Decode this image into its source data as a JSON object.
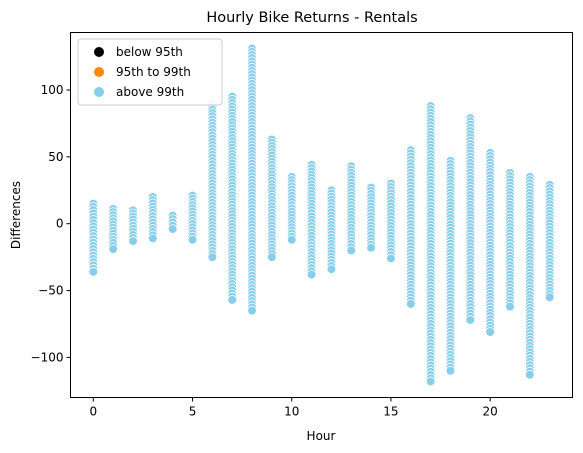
{
  "chart_data": {
    "type": "scatter",
    "title": "Hourly Bike Returns - Rentals",
    "xlabel": "Hour",
    "ylabel": "Differences",
    "xlim": [
      -1.15,
      24.15
    ],
    "ylim": [
      -130,
      143
    ],
    "xticks": [
      0,
      5,
      10,
      15,
      20
    ],
    "yticks": [
      -100,
      -50,
      0,
      50,
      100
    ],
    "grid": false,
    "legend_position": "top-left",
    "series": [
      {
        "name": "below 95th",
        "color": "#000000",
        "ranges": [
          {
            "x": 0,
            "y": [
              -4,
              1
            ]
          },
          {
            "x": 1,
            "y": [
              -2,
              4
            ]
          },
          {
            "x": 2,
            "y": [
              -1,
              3
            ]
          },
          {
            "x": 3,
            "y": [
              -1,
              2
            ]
          },
          {
            "x": 4,
            "y": [
              -1,
              1
            ]
          },
          {
            "x": 5,
            "y": [
              -2,
              3
            ]
          },
          {
            "x": 6,
            "y": [
              -6,
              6
            ]
          },
          {
            "x": 7,
            "y": [
              -14,
              13
            ]
          },
          {
            "x": 8,
            "y": [
              -14,
              14
            ]
          },
          {
            "x": 9,
            "y": [
              -9,
              8
            ]
          },
          {
            "x": 10,
            "y": [
              -5,
              4
            ]
          },
          {
            "x": 11,
            "y": [
              -7,
              6
            ]
          },
          {
            "x": 12,
            "y": [
              -5,
              5
            ]
          },
          {
            "x": 13,
            "y": [
              -5,
              5
            ]
          },
          {
            "x": 14,
            "y": [
              -5,
              5
            ]
          },
          {
            "x": 15,
            "y": [
              -6,
              6
            ]
          },
          {
            "x": 16,
            "y": [
              -10,
              8
            ]
          },
          {
            "x": 17,
            "y": [
              -14,
              8
            ]
          },
          {
            "x": 18,
            "y": [
              -12,
              9
            ]
          },
          {
            "x": 19,
            "y": [
              -8,
              6
            ]
          },
          {
            "x": 20,
            "y": [
              -7,
              5
            ]
          },
          {
            "x": 21,
            "y": [
              -6,
              7
            ]
          },
          {
            "x": 22,
            "y": [
              -5,
              5
            ]
          },
          {
            "x": 23,
            "y": [
              -4,
              4
            ]
          }
        ]
      },
      {
        "name": "95th to 99th",
        "color": "#ff8c00",
        "ranges": [
          {
            "x": 0,
            "y": [
              -8,
              7
            ]
          },
          {
            "x": 1,
            "y": [
              -5,
              6
            ]
          },
          {
            "x": 2,
            "y": [
              -4,
              5
            ]
          },
          {
            "x": 3,
            "y": [
              -3,
              4
            ]
          },
          {
            "x": 4,
            "y": [
              -3,
              3
            ]
          },
          {
            "x": 5,
            "y": [
              -5,
              6
            ]
          },
          {
            "x": 6,
            "y": [
              -14,
              13
            ]
          },
          {
            "x": 7,
            "y": [
              -32,
              28
            ]
          },
          {
            "x": 8,
            "y": [
              -30,
              28
            ]
          },
          {
            "x": 9,
            "y": [
              -20,
              17
            ]
          },
          {
            "x": 10,
            "y": [
              -10,
              10
            ]
          },
          {
            "x": 11,
            "y": [
              -13,
              12
            ]
          },
          {
            "x": 12,
            "y": [
              -10,
              10
            ]
          },
          {
            "x": 13,
            "y": [
              -10,
              11
            ]
          },
          {
            "x": 14,
            "y": [
              -10,
              10
            ]
          },
          {
            "x": 15,
            "y": [
              -12,
              12
            ]
          },
          {
            "x": 16,
            "y": [
              -20,
              16
            ]
          },
          {
            "x": 17,
            "y": [
              -35,
              25
            ]
          },
          {
            "x": 18,
            "y": [
              -25,
              18
            ]
          },
          {
            "x": 19,
            "y": [
              -17,
              14
            ]
          },
          {
            "x": 20,
            "y": [
              -14,
              12
            ]
          },
          {
            "x": 21,
            "y": [
              -13,
              13
            ]
          },
          {
            "x": 22,
            "y": [
              -10,
              10
            ]
          },
          {
            "x": 23,
            "y": [
              -8,
              8
            ]
          }
        ]
      },
      {
        "name": "above 99th",
        "color": "#87ceeb",
        "ranges": [
          {
            "x": 0,
            "y": [
              -36,
              15
            ]
          },
          {
            "x": 1,
            "y": [
              -19,
              11
            ]
          },
          {
            "x": 2,
            "y": [
              -13,
              10
            ]
          },
          {
            "x": 3,
            "y": [
              -11,
              20
            ]
          },
          {
            "x": 4,
            "y": [
              -4,
              6
            ]
          },
          {
            "x": 5,
            "y": [
              -12,
              21
            ]
          },
          {
            "x": 6,
            "y": [
              -25,
              90
            ]
          },
          {
            "x": 7,
            "y": [
              -57,
              95
            ]
          },
          {
            "x": 8,
            "y": [
              -65,
              131
            ]
          },
          {
            "x": 9,
            "y": [
              -25,
              63
            ]
          },
          {
            "x": 10,
            "y": [
              -12,
              35
            ]
          },
          {
            "x": 11,
            "y": [
              -38,
              44
            ]
          },
          {
            "x": 12,
            "y": [
              -34,
              25
            ]
          },
          {
            "x": 13,
            "y": [
              -20,
              43
            ]
          },
          {
            "x": 14,
            "y": [
              -18,
              27
            ]
          },
          {
            "x": 15,
            "y": [
              -26,
              30
            ]
          },
          {
            "x": 16,
            "y": [
              -60,
              55
            ]
          },
          {
            "x": 17,
            "y": [
              -118,
              88
            ]
          },
          {
            "x": 18,
            "y": [
              -110,
              47
            ]
          },
          {
            "x": 19,
            "y": [
              -72,
              79
            ]
          },
          {
            "x": 20,
            "y": [
              -81,
              53
            ]
          },
          {
            "x": 21,
            "y": [
              -62,
              38
            ]
          },
          {
            "x": 22,
            "y": [
              -113,
              35
            ]
          },
          {
            "x": 23,
            "y": [
              -55,
              29
            ]
          }
        ]
      }
    ]
  }
}
